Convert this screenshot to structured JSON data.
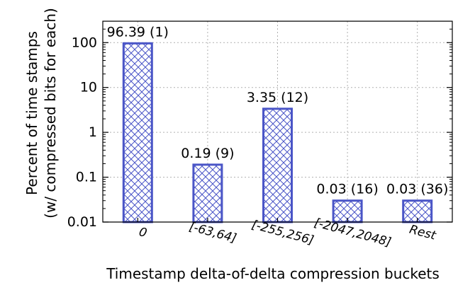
{
  "chart_data": {
    "type": "bar",
    "scale": "log",
    "title": "",
    "xlabel": "Timestamp delta-of-delta compression buckets",
    "ylabel_line1": "Percent of time stamps",
    "ylabel_line2": "(w/ compressed bits for each)",
    "ylim": [
      0.01,
      300
    ],
    "grid": true,
    "y_ticks": [
      0.01,
      0.1,
      1,
      10,
      100
    ],
    "y_tick_labels": [
      "0.01",
      "0.1",
      "1",
      "10",
      "100"
    ],
    "categories": [
      "0",
      "[-63,64]",
      "[-255,256]",
      "[-2047,2048]",
      "Rest"
    ],
    "values": [
      96.39,
      0.19,
      3.35,
      0.03,
      0.03
    ],
    "data_labels": [
      "96.39 (1)",
      "0.19 (9)",
      "3.35 (12)",
      "0.03 (16)",
      "0.03 (36)"
    ],
    "bar_color": "#4a55c7",
    "bar_pattern": "crosshatch"
  }
}
